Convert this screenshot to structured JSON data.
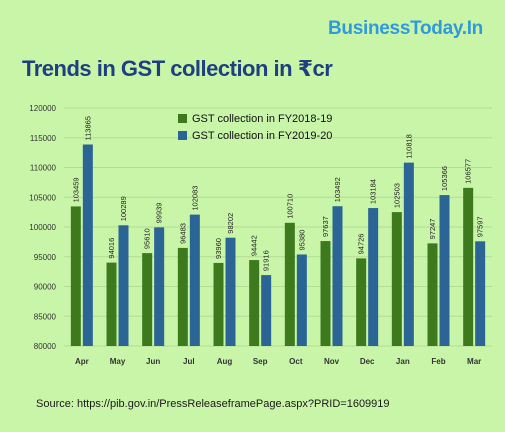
{
  "brand": "BusinessToday.In",
  "title": "Trends in GST collection in ₹cr",
  "source": "Source: https://pib.gov.in/PressReleaseframePage.aspx?PRID=1609919",
  "colors": {
    "background": "#c9f5a9",
    "series_2018": "#3d7a1e",
    "series_2019": "#2a6595",
    "brand": "#2f9bdc",
    "title": "#1f3f80"
  },
  "chart_data": {
    "type": "bar",
    "categories": [
      "Apr",
      "May",
      "Jun",
      "Jul",
      "Aug",
      "Sep",
      "Oct",
      "Nov",
      "Dec",
      "Jan",
      "Feb",
      "Mar"
    ],
    "series": [
      {
        "name": "GST collection in FY2018-19",
        "color": "#3d7a1e",
        "values": [
          103459,
          94016,
          95610,
          96483,
          93960,
          94442,
          100710,
          97637,
          94726,
          102503,
          97247,
          106577
        ]
      },
      {
        "name": "GST collection in FY2019-20",
        "color": "#2a6595",
        "values": [
          113865,
          100289,
          99939,
          102083,
          98202,
          91916,
          95380,
          103492,
          103184,
          110818,
          105366,
          97597
        ]
      }
    ],
    "ylim": [
      80000,
      120000
    ],
    "yticks": [
      80000,
      85000,
      90000,
      95000,
      100000,
      105000,
      110000,
      115000,
      120000
    ],
    "grid": true,
    "legend_position": "top-center"
  }
}
